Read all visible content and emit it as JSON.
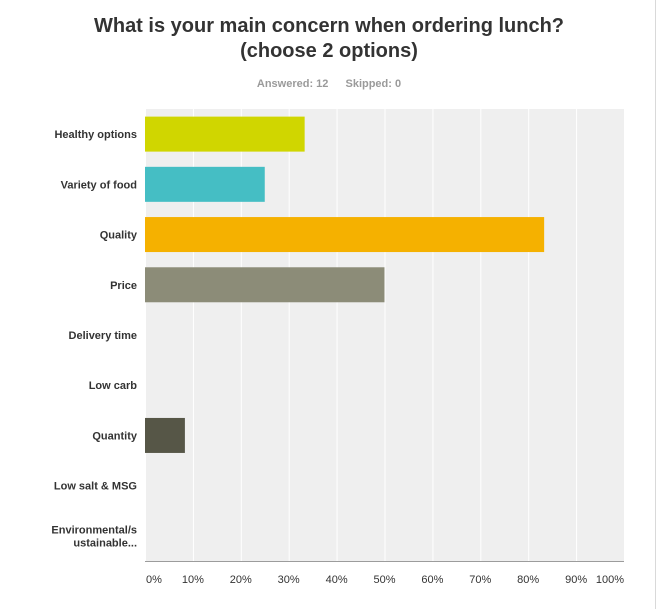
{
  "header": {
    "title": "What is your main concern when ordering lunch? (choose 2 options)",
    "answered": "Answered: 12",
    "skipped": "Skipped: 0"
  },
  "chart_data": {
    "type": "bar",
    "orientation": "horizontal",
    "categories": [
      "Healthy options",
      "Variety of food",
      "Quality",
      "Price",
      "Delivery time",
      "Low carb",
      "Quantity",
      "Low salt & MSG",
      "Environmental/sustainable..."
    ],
    "category_label_lines": [
      [
        "Healthy options"
      ],
      [
        "Variety of food"
      ],
      [
        "Quality"
      ],
      [
        "Price"
      ],
      [
        "Delivery time"
      ],
      [
        "Low carb"
      ],
      [
        "Quantity"
      ],
      [
        "Low salt & MSG"
      ],
      [
        "Environmental/s",
        "ustainable..."
      ]
    ],
    "values": [
      33.33,
      25.0,
      83.33,
      50.0,
      0,
      0,
      8.33,
      0,
      0
    ],
    "colors": [
      "#d0d600",
      "#45bec4",
      "#f5b100",
      "#8c8c78",
      "#b0b09c",
      "#ddddc8",
      "#565647",
      "#a4a48a",
      "#c9c9b0"
    ],
    "xlim": [
      0,
      100
    ],
    "x_ticks": [
      0,
      10,
      20,
      30,
      40,
      50,
      60,
      70,
      80,
      90,
      100
    ],
    "x_tick_labels": [
      "0%",
      "10%",
      "20%",
      "30%",
      "40%",
      "50%",
      "60%",
      "70%",
      "80%",
      "90%",
      "100%"
    ],
    "grid": true,
    "plot_background": "#efefef",
    "grid_color": "#ffffff"
  }
}
